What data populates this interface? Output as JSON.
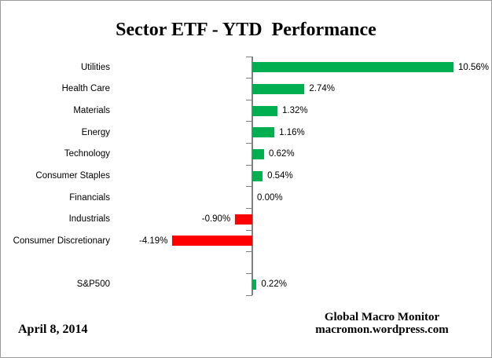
{
  "title": "Sector ETF - YTD  Performance",
  "footer": {
    "date": "April 8, 2014",
    "source_line1": "Global Macro Monitor",
    "source_line2": "macromon.wordpress.com"
  },
  "colors": {
    "positive_bar": "#00B050",
    "negative_bar": "#FF0000",
    "axis": "#808080",
    "frame_border": "#9B9B9B"
  },
  "chart_data": {
    "type": "bar",
    "orientation": "horizontal",
    "title": "Sector ETF - YTD  Performance",
    "xlabel": "",
    "ylabel": "",
    "xlim": [
      -5,
      11.5
    ],
    "grid": false,
    "legend": false,
    "value_suffix": "%",
    "bars": [
      {
        "category": "Utilities",
        "value": 10.56,
        "label": "10.56%"
      },
      {
        "category": "Health Care",
        "value": 2.74,
        "label": "2.74%"
      },
      {
        "category": "Materials",
        "value": 1.32,
        "label": "1.32%"
      },
      {
        "category": "Energy",
        "value": 1.16,
        "label": "1.16%"
      },
      {
        "category": "Technology",
        "value": 0.62,
        "label": "0.62%"
      },
      {
        "category": "Consumer Staples",
        "value": 0.54,
        "label": "0.54%"
      },
      {
        "category": "Financials",
        "value": 0.0,
        "label": "0.00%"
      },
      {
        "category": "Industrials",
        "value": -0.9,
        "label": "-0.90%"
      },
      {
        "category": "Consumer Discretionary",
        "value": -4.19,
        "label": "-4.19%"
      },
      {
        "category": "",
        "value": null,
        "label": ""
      },
      {
        "category": "S&P500",
        "value": 0.22,
        "label": "0.22%"
      }
    ]
  }
}
